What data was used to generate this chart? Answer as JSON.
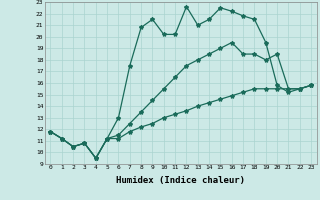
{
  "xlabel": "Humidex (Indice chaleur)",
  "xlim": [
    -0.5,
    23.5
  ],
  "ylim": [
    9,
    23
  ],
  "yticks": [
    9,
    10,
    11,
    12,
    13,
    14,
    15,
    16,
    17,
    18,
    19,
    20,
    21,
    22,
    23
  ],
  "xticks": [
    0,
    1,
    2,
    3,
    4,
    5,
    6,
    7,
    8,
    9,
    10,
    11,
    12,
    13,
    14,
    15,
    16,
    17,
    18,
    19,
    20,
    21,
    22,
    23
  ],
  "bg_color": "#cce9e6",
  "grid_color": "#aad4d0",
  "line_color": "#1a6b5a",
  "line_width": 0.9,
  "marker": "*",
  "marker_size": 3.0,
  "series": [
    [
      11.8,
      11.2,
      10.5,
      10.8,
      9.5,
      11.2,
      13.0,
      17.5,
      20.8,
      21.5,
      20.2,
      20.2,
      22.6,
      21.0,
      21.5,
      22.5,
      22.2,
      21.8,
      21.5,
      19.5,
      15.8,
      15.2,
      15.5,
      15.8
    ],
    [
      11.8,
      11.2,
      10.5,
      10.8,
      9.5,
      11.2,
      11.5,
      12.5,
      13.5,
      14.5,
      15.5,
      16.5,
      17.5,
      18.0,
      18.5,
      19.0,
      19.5,
      18.5,
      18.5,
      18.0,
      18.5,
      15.5,
      15.5,
      15.8
    ],
    [
      11.8,
      11.2,
      10.5,
      10.8,
      9.5,
      11.2,
      11.2,
      11.8,
      12.2,
      12.5,
      13.0,
      13.3,
      13.6,
      14.0,
      14.3,
      14.6,
      14.9,
      15.2,
      15.5,
      15.5,
      15.5,
      15.5,
      15.5,
      15.8
    ]
  ]
}
